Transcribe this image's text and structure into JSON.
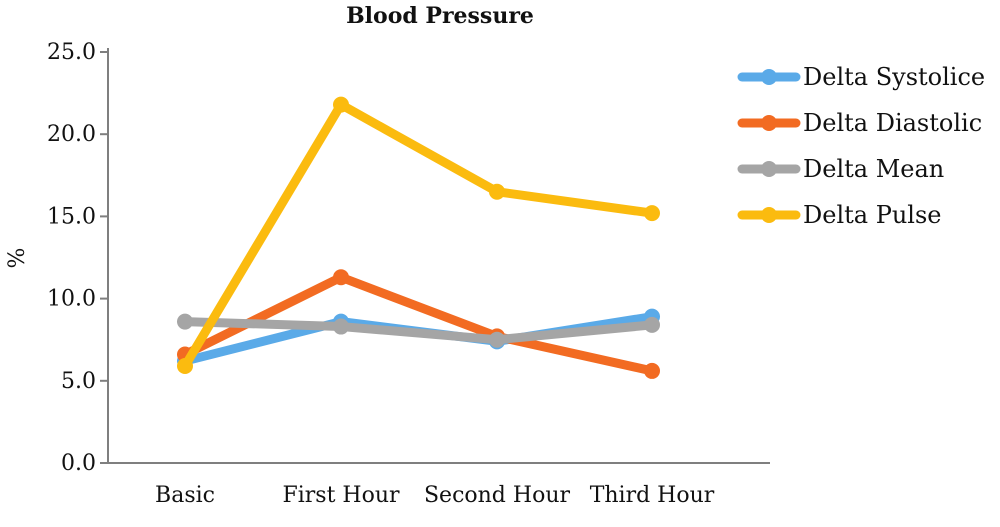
{
  "chart_data": {
    "type": "line",
    "title": "Blood Pressure",
    "xlabel": "",
    "ylabel": "%",
    "categories": [
      "Basic",
      "First Hour",
      "Second Hour",
      "Third Hour"
    ],
    "ylim": [
      0,
      25
    ],
    "yticks": [
      "0.0",
      "5.0",
      "10.0",
      "15.0",
      "20.0",
      "25.0"
    ],
    "grid": false,
    "legend_position": "right",
    "series": [
      {
        "name": "Delta Systolice",
        "color": "#5aaae8",
        "values": [
          6.2,
          8.6,
          7.4,
          8.9
        ]
      },
      {
        "name": "Delta Diastolic",
        "color": "#f26b22",
        "values": [
          6.6,
          11.3,
          7.7,
          5.6
        ]
      },
      {
        "name": "Delta Mean",
        "color": "#a5a5a5",
        "values": [
          8.6,
          8.3,
          7.5,
          8.4
        ]
      },
      {
        "name": "Delta Pulse",
        "color": "#fbbb0f",
        "values": [
          5.9,
          21.8,
          16.5,
          15.2
        ]
      }
    ]
  }
}
